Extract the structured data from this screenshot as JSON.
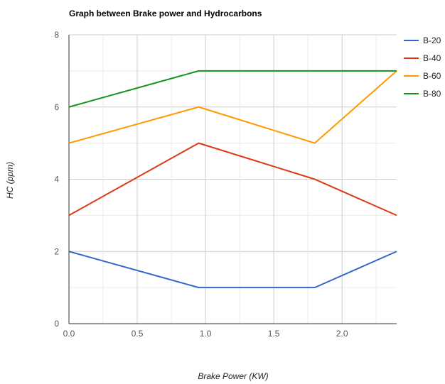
{
  "chart_data": {
    "type": "line",
    "title": "Graph between Brake power and Hydrocarbons",
    "xlabel": "Brake Power (KW)",
    "ylabel": "HC (ppm)",
    "xlim": [
      0,
      2.4
    ],
    "ylim": [
      0,
      8
    ],
    "x_ticks": [
      "0.0",
      "0.5",
      "1.0",
      "1.5",
      "2.0"
    ],
    "y_ticks": [
      "0",
      "2",
      "4",
      "6",
      "8"
    ],
    "grid": true,
    "legend_position": "right",
    "x": [
      0,
      0.95,
      1.8,
      2.4
    ],
    "series": [
      {
        "name": "B-20",
        "color": "#3366cc",
        "values": [
          2,
          1,
          1,
          2
        ]
      },
      {
        "name": "B-40",
        "color": "#dc3912",
        "values": [
          3,
          5,
          4,
          3
        ]
      },
      {
        "name": "B-60",
        "color": "#ff9900",
        "values": [
          5,
          6,
          5,
          7
        ]
      },
      {
        "name": "B-80",
        "color": "#109618",
        "values": [
          6,
          7,
          7,
          7
        ]
      }
    ]
  }
}
